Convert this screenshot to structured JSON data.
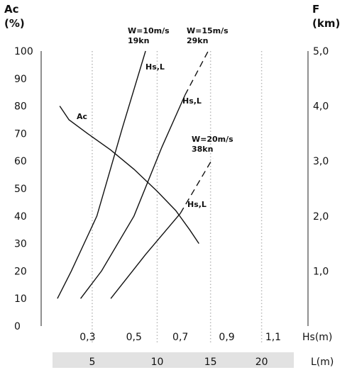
{
  "chart_data": {
    "type": "line",
    "left_axis": {
      "title_line1": "Ac",
      "title_line2": "(%)",
      "ylim": [
        0,
        100
      ],
      "ticks": [
        "0",
        "10",
        "20",
        "30",
        "40",
        "50",
        "60",
        "70",
        "80",
        "90",
        "100"
      ]
    },
    "right_axis": {
      "title_line1": "F",
      "title_line2": "(km)",
      "ylim": [
        0,
        5
      ],
      "ticks": [
        {
          "value": 1,
          "label": "1,0"
        },
        {
          "value": 2,
          "label": "2,0"
        },
        {
          "value": 3,
          "label": "3,0"
        },
        {
          "value": 4,
          "label": "4,0"
        },
        {
          "value": 5,
          "label": "5,0"
        }
      ]
    },
    "x_axis": {
      "label": "Hs(m)",
      "xlim": [
        0.1,
        1.25
      ],
      "ticks": [
        {
          "value": 0.3,
          "label": "0,3"
        },
        {
          "value": 0.5,
          "label": "0,5"
        },
        {
          "value": 0.7,
          "label": "0,7"
        },
        {
          "value": 0.9,
          "label": "0,9"
        },
        {
          "value": 1.1,
          "label": "1,1"
        }
      ]
    },
    "secondary_x_axis": {
      "label": "L(m)",
      "ticks": [
        {
          "value": 5,
          "label": "5",
          "hs": 0.32
        },
        {
          "value": 10,
          "label": "10",
          "hs": 0.6
        },
        {
          "value": 15,
          "label": "15",
          "hs": 0.83
        },
        {
          "value": 20,
          "label": "20",
          "hs": 1.05
        }
      ]
    },
    "grid": "dotted vertical lines at L ticks",
    "series": [
      {
        "name": "Ac",
        "axis": "left",
        "style": "solid",
        "points": [
          [
            0.18,
            80
          ],
          [
            0.22,
            75
          ],
          [
            0.3,
            70
          ],
          [
            0.4,
            64
          ],
          [
            0.5,
            57
          ],
          [
            0.6,
            49
          ],
          [
            0.68,
            42
          ],
          [
            0.74,
            35
          ],
          [
            0.78,
            30
          ]
        ]
      },
      {
        "name": "Hs,L",
        "axis": "right",
        "style": "solid",
        "label_line1": "W=10m/s",
        "label_line2": "19kn",
        "points": [
          [
            0.17,
            0.5
          ],
          [
            0.23,
            1.0
          ],
          [
            0.34,
            2.0
          ],
          [
            0.45,
            3.6
          ],
          [
            0.55,
            5.0
          ]
        ]
      },
      {
        "name": "Hs,L",
        "axis": "right",
        "style": "solid-then-dashed",
        "label_line1": "W=15m/s",
        "label_line2": "29kn",
        "solid_points": [
          [
            0.27,
            0.5
          ],
          [
            0.36,
            1.0
          ],
          [
            0.5,
            2.0
          ],
          [
            0.62,
            3.25
          ],
          [
            0.72,
            4.2
          ]
        ],
        "dashed_points": [
          [
            0.72,
            4.2
          ],
          [
            0.82,
            5.0
          ]
        ]
      },
      {
        "name": "Hs,L",
        "axis": "right",
        "style": "solid-then-dashed",
        "label_line1": "W=20m/s",
        "label_line2": "38kn",
        "solid_points": [
          [
            0.4,
            0.5
          ],
          [
            0.55,
            1.3
          ],
          [
            0.7,
            2.05
          ]
        ],
        "dashed_points": [
          [
            0.7,
            2.05
          ],
          [
            0.84,
            3.05
          ]
        ]
      }
    ],
    "annotations": [
      "Ac",
      "Hs,L",
      "Hs,L",
      "Hs,L"
    ]
  }
}
